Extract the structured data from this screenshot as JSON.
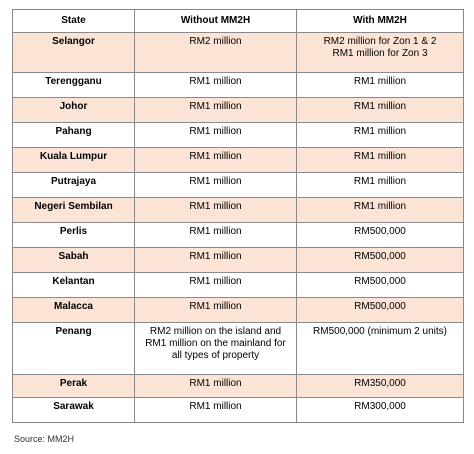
{
  "table": {
    "headers": [
      "State",
      "Without MM2H",
      "With MM2H"
    ],
    "rows": [
      {
        "state": "Selangor",
        "without": "RM2 million",
        "with_lines": [
          "RM2 million for Zon 1 & 2",
          "RM1 million for Zon 3"
        ]
      },
      {
        "state": "Terengganu",
        "without": "RM1 million",
        "with": "RM1 million"
      },
      {
        "state": "Johor",
        "without": "RM1 million",
        "with": "RM1 million"
      },
      {
        "state": "Pahang",
        "without": "RM1 million",
        "with": "RM1 million"
      },
      {
        "state": "Kuala Lumpur",
        "without": "RM1 million",
        "with": "RM1 million"
      },
      {
        "state": "Putrajaya",
        "without": "RM1 million",
        "with": "RM1 million"
      },
      {
        "state": "Negeri Sembilan",
        "without": "RM1 million",
        "with": "RM1 million"
      },
      {
        "state": "Perlis",
        "without": "RM1 million",
        "with": "RM500,000"
      },
      {
        "state": "Sabah",
        "without": "RM1 million",
        "with": "RM500,000"
      },
      {
        "state": "Kelantan",
        "without": "RM1 million",
        "with": "RM500,000"
      },
      {
        "state": "Malacca",
        "without": "RM1 million",
        "with": "RM500,000"
      },
      {
        "state": "Penang",
        "without_lines": [
          "RM2 million on the island and",
          "RM1 million on the mainland for",
          "all types of property"
        ],
        "with": "RM500,000 (minimum 2 units)"
      },
      {
        "state": "Perak",
        "without": "RM1 million",
        "with": "RM350,000"
      },
      {
        "state": "Sarawak",
        "without": "RM1 million",
        "with": "RM300,000"
      }
    ]
  },
  "source": "Source: MM2H"
}
